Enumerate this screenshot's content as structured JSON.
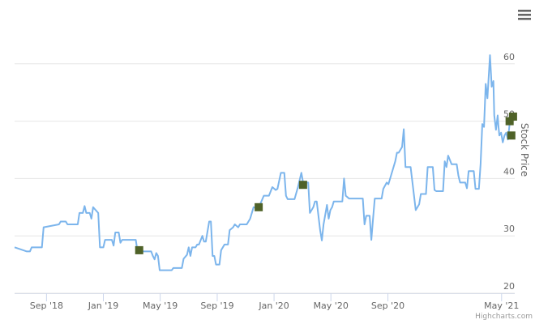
{
  "chart_data": {
    "type": "line",
    "y_axis_label": "Stock Price",
    "credits": "Highcharts.com",
    "xlim": [
      2018.48,
      2021.41
    ],
    "xticks": [
      {
        "value": 2018.667,
        "label": "Sep '18"
      },
      {
        "value": 2019.0,
        "label": "Jan '19"
      },
      {
        "value": 2019.333,
        "label": "May '19"
      },
      {
        "value": 2019.667,
        "label": "Sep '19"
      },
      {
        "value": 2020.0,
        "label": "Jan '20"
      },
      {
        "value": 2020.333,
        "label": "May '20"
      },
      {
        "value": 2020.667,
        "label": "Sep '20"
      },
      {
        "value": 2021.333,
        "label": "May '21"
      }
    ],
    "ylim": [
      20,
      70
    ],
    "yticks": [
      20,
      30,
      40,
      50,
      60
    ],
    "grid": true,
    "series": [
      {
        "color": "#7cb5ec",
        "mode": "line",
        "x": [
          2018.48,
          2018.55,
          2018.57,
          2018.58,
          2018.64,
          2018.65,
          2018.74,
          2018.75,
          2018.78,
          2018.79,
          2018.85,
          2018.86,
          2018.88,
          2018.89,
          2018.9,
          2018.92,
          2018.93,
          2018.94,
          2018.97,
          2018.98,
          2019.0,
          2019.01,
          2019.05,
          2019.06,
          2019.07,
          2019.09,
          2019.1,
          2019.11,
          2019.19,
          2019.2,
          2019.28,
          2019.29,
          2019.3,
          2019.31,
          2019.32,
          2019.33,
          2019.4,
          2019.41,
          2019.46,
          2019.47,
          2019.49,
          2019.5,
          2019.51,
          2019.52,
          2019.54,
          2019.55,
          2019.56,
          2019.58,
          2019.59,
          2019.6,
          2019.62,
          2019.63,
          2019.64,
          2019.65,
          2019.66,
          2019.68,
          2019.69,
          2019.71,
          2019.73,
          2019.74,
          2019.76,
          2019.77,
          2019.79,
          2019.8,
          2019.84,
          2019.86,
          2019.88,
          2019.91,
          2019.92,
          2019.94,
          2019.97,
          2019.99,
          2020.01,
          2020.02,
          2020.04,
          2020.06,
          2020.07,
          2020.08,
          2020.12,
          2020.14,
          2020.16,
          2020.17,
          2020.2,
          2020.21,
          2020.23,
          2020.24,
          2020.25,
          2020.27,
          2020.28,
          2020.29,
          2020.31,
          2020.32,
          2020.33,
          2020.34,
          2020.35,
          2020.4,
          2020.41,
          2020.42,
          2020.44,
          2020.52,
          2020.53,
          2020.54,
          2020.56,
          2020.57,
          2020.58,
          2020.59,
          2020.63,
          2020.64,
          2020.66,
          2020.67,
          2020.68,
          2020.7,
          2020.71,
          2020.72,
          2020.73,
          2020.75,
          2020.76,
          2020.77,
          2020.8,
          2020.82,
          2020.83,
          2020.85,
          2020.86,
          2020.89,
          2020.9,
          2020.93,
          2020.94,
          2020.95,
          2020.99,
          2021.0,
          2021.01,
          2021.02,
          2021.04,
          2021.07,
          2021.08,
          2021.09,
          2021.12,
          2021.13,
          2021.14,
          2021.17,
          2021.18,
          2021.2,
          2021.21,
          2021.22,
          2021.23,
          2021.24,
          2021.25,
          2021.26,
          2021.265,
          2021.275,
          2021.285,
          2021.29,
          2021.3,
          2021.31,
          2021.315,
          2021.32,
          2021.33,
          2021.34,
          2021.35,
          2021.36,
          2021.37,
          2021.38,
          2021.39
        ],
        "values": [
          28,
          27.3,
          27.3,
          28,
          28,
          31.5,
          32,
          32.5,
          32.5,
          32,
          32,
          34,
          34,
          35.2,
          34,
          34,
          33,
          35,
          34,
          28,
          28,
          29.3,
          29.3,
          28.3,
          30.6,
          30.6,
          28.8,
          29.3,
          29.3,
          27.3,
          27.3,
          26.5,
          25.9,
          27,
          26.5,
          24,
          24,
          24.4,
          24.4,
          26,
          26.7,
          28,
          26.5,
          28,
          28,
          28.5,
          28.5,
          30,
          29,
          29,
          32.5,
          32.5,
          26.5,
          26.5,
          25,
          25,
          27.5,
          28.5,
          28.5,
          31,
          31.5,
          32,
          31.5,
          32,
          32,
          33,
          35,
          34.8,
          35.6,
          37,
          37,
          38.5,
          38,
          38.2,
          41,
          41,
          37,
          36.4,
          36.4,
          38.5,
          41,
          39.3,
          39.3,
          34,
          35,
          36,
          36,
          31,
          29.2,
          32,
          35.4,
          33,
          34.5,
          35,
          36,
          36,
          40,
          37,
          36.5,
          36.5,
          32,
          33.5,
          33.5,
          29.3,
          33,
          36.5,
          36.5,
          38.2,
          39.3,
          39,
          40,
          42,
          43,
          44.5,
          44.5,
          45.5,
          48.6,
          42,
          42,
          37,
          34.5,
          35.5,
          37.3,
          37.3,
          42,
          42,
          38,
          37.8,
          37.8,
          43,
          42,
          44,
          42.5,
          42.5,
          40.5,
          39.3,
          39.3,
          38.3,
          41.3,
          41.3,
          38.2,
          38.2,
          42.5,
          49.5,
          49,
          56.5,
          54,
          59,
          61.5,
          56,
          57,
          51,
          48.5,
          51,
          49,
          47.5,
          48,
          46.3,
          47.5,
          48,
          46.8,
          49.5,
          50.2
        ]
      },
      {
        "color": "#4f6228",
        "mode": "markers",
        "x": [
          2019.21,
          2019.91,
          2020.17,
          2021.38,
          2021.4,
          2021.39
        ],
        "values": [
          27.5,
          35,
          38.9,
          50,
          50.8,
          47.5
        ]
      }
    ]
  }
}
